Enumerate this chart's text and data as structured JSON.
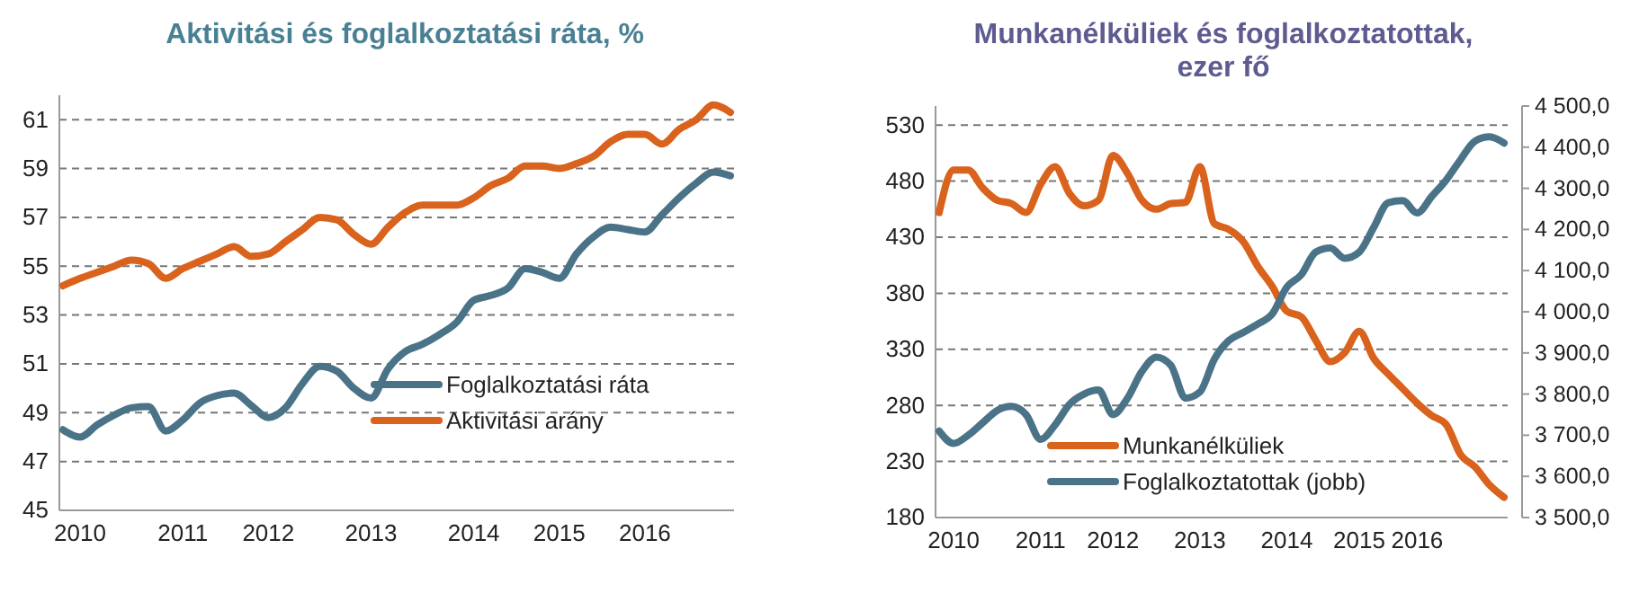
{
  "chart_data": [
    {
      "type": "line",
      "title": "Aktivitási  és foglalkoztatási ráta, %",
      "categories": [
        null,
        "2010",
        null,
        null,
        null,
        null,
        null,
        "2011",
        null,
        null,
        null,
        null,
        "2012",
        null,
        null,
        null,
        null,
        null,
        "2013",
        null,
        null,
        null,
        null,
        null,
        "2014",
        null,
        null,
        null,
        null,
        "2015",
        null,
        null,
        null,
        null,
        "2016",
        null,
        null,
        null,
        null,
        null
      ],
      "series": [
        {
          "name": "Foglalkoztatási ráta",
          "color": "#4a7388",
          "values": [
            48.3,
            48.0,
            48.5,
            48.9,
            49.2,
            49.25,
            48.25,
            48.7,
            49.4,
            49.7,
            49.8,
            49.3,
            48.8,
            49.2,
            50.2,
            50.9,
            50.7,
            50.0,
            49.6,
            50.8,
            51.5,
            51.8,
            52.2,
            52.7,
            53.6,
            53.8,
            54.1,
            54.9,
            54.75,
            54.5,
            55.5,
            56.2,
            56.6,
            56.5,
            56.4,
            57.1,
            57.8,
            58.4,
            58.85,
            58.7
          ]
        },
        {
          "name": "Aktivitási arány",
          "color": "#d9621c",
          "values": [
            54.2,
            54.5,
            54.75,
            55.0,
            55.25,
            55.1,
            54.5,
            54.9,
            55.2,
            55.5,
            55.8,
            55.4,
            55.5,
            56.0,
            56.5,
            57.0,
            56.9,
            56.3,
            55.9,
            56.6,
            57.2,
            57.5,
            57.5,
            57.5,
            57.8,
            58.3,
            58.6,
            59.1,
            59.1,
            59.0,
            59.2,
            59.5,
            60.1,
            60.4,
            60.4,
            60.0,
            60.6,
            61.0,
            61.6,
            61.3
          ]
        }
      ],
      "ylim": [
        45,
        62
      ],
      "yticks": [
        45,
        47,
        49,
        51,
        53,
        55,
        57,
        59,
        61
      ],
      "grid": "y",
      "legend": "bottom right",
      "marker": "none"
    },
    {
      "type": "line",
      "title": "Munkanélküliek  és foglalkoztatottak, ezer fő",
      "categories": [
        null,
        "2010",
        null,
        null,
        null,
        null,
        null,
        "2011",
        null,
        null,
        null,
        null,
        "2012",
        null,
        null,
        null,
        null,
        null,
        "2013",
        null,
        null,
        null,
        null,
        null,
        "2014",
        null,
        null,
        null,
        null,
        "2015",
        null,
        null,
        null,
        "2016",
        null,
        null,
        null,
        null,
        null,
        null
      ],
      "series": [
        {
          "name": "Munkanélküliek",
          "color": "#d9621c",
          "values": [
            452,
            490,
            490,
            474,
            463,
            460,
            452,
            477,
            493,
            469,
            458,
            463,
            503,
            487,
            463,
            455,
            460,
            461,
            493,
            442,
            437,
            426,
            404,
            386,
            364,
            359,
            338,
            319,
            327,
            346,
            322,
            308,
            295,
            282,
            271,
            263,
            236,
            225,
            209,
            198
          ]
        },
        {
          "name": "Foglalkoztatottak (jobb)",
          "color": "#4a7388",
          "axis": "y2",
          "values": [
            3710,
            3680,
            3700,
            3730,
            3760,
            3770,
            3750,
            3690,
            3725,
            3775,
            3800,
            3810,
            3750,
            3790,
            3855,
            3890,
            3870,
            3790,
            3805,
            3885,
            3930,
            3950,
            3970,
            3995,
            4060,
            4090,
            4145,
            4155,
            4130,
            4145,
            4205,
            4265,
            4270,
            4240,
            4280,
            4320,
            4370,
            4415,
            4425,
            4410
          ]
        }
      ],
      "ylim": [
        180,
        547
      ],
      "yticks": [
        180,
        230,
        280,
        330,
        380,
        430,
        480,
        530
      ],
      "y2lim": [
        3500,
        4500
      ],
      "y2ticks": [
        {
          "value": 3500,
          "label": "3 500,0"
        },
        {
          "value": 3600,
          "label": "3 600,0"
        },
        {
          "value": 3700,
          "label": "3 700,0"
        },
        {
          "value": 3800,
          "label": "3 800,0"
        },
        {
          "value": 3900,
          "label": "3 900,0"
        },
        {
          "value": 4000,
          "label": "4 000,0"
        },
        {
          "value": 4100,
          "label": "4 100,0"
        },
        {
          "value": 4200,
          "label": "4 200,0"
        },
        {
          "value": 4300,
          "label": "4 300,0"
        },
        {
          "value": 4400,
          "label": "4 400,0"
        },
        {
          "value": 4500,
          "label": "4 500,0"
        }
      ],
      "grid": "y",
      "legend": "bottom",
      "marker": "none"
    }
  ]
}
